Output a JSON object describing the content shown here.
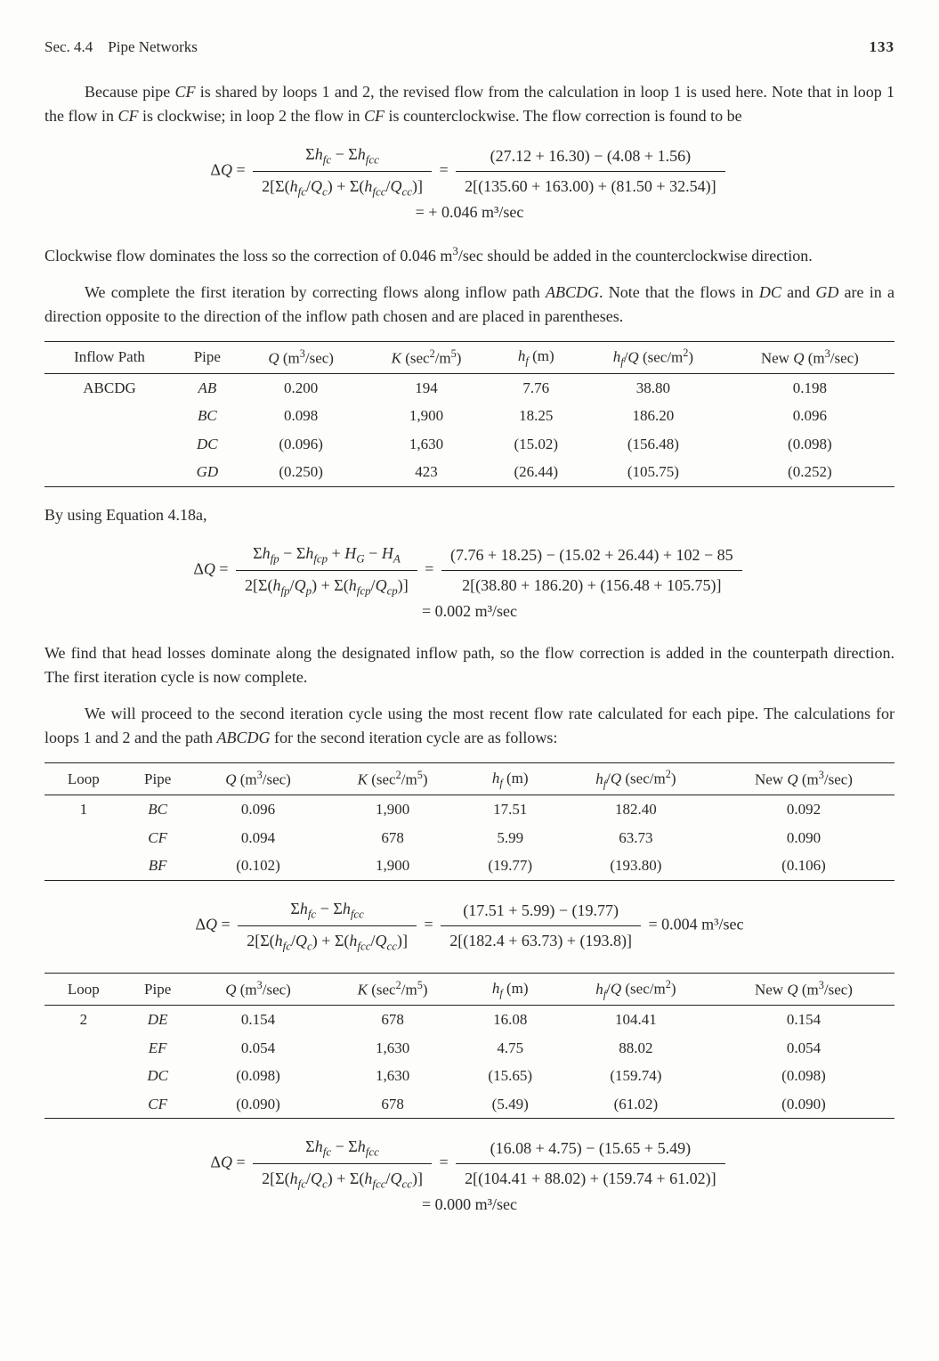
{
  "header": {
    "section": "Sec. 4.4",
    "title": "Pipe Networks",
    "page": "133"
  },
  "para1": "Because pipe CF is shared by loops 1 and 2, the revised flow from the calculation in loop 1 is used here. Note that in loop 1 the flow in CF is clockwise; in loop 2 the flow in CF is counterclockwise. The flow correction is found to be",
  "eq1": {
    "lhs": "ΔQ =",
    "num1": "Σh_{fc} − Σh_{fcc}",
    "den1": "2[Σ(h_{fc}/Q_c) + Σ(h_{fcc}/Q_{cc})]",
    "num2": "(27.12 + 16.30) − (4.08 + 1.56)",
    "den2": "2[(135.60 + 163.00) + (81.50 + 32.54)]",
    "result": "=  + 0.046 m³/sec"
  },
  "para2": "Clockwise flow dominates the loss so the correction of 0.046 m³/sec should be added in the counterclockwise direction.",
  "para3": "We complete the first iteration by correcting flows along inflow path ABCDG. Note that the flows in DC and GD are in a direction opposite to the direction of the inflow path chosen and are placed in parentheses.",
  "table1": {
    "cols": [
      "Inflow Path",
      "Pipe",
      "Q (m³/sec)",
      "K (sec²/m⁵)",
      "h_f (m)",
      "h_f/Q (sec/m²)",
      "New Q (m³/sec)"
    ],
    "rows": [
      [
        "ABCDG",
        "AB",
        "0.200",
        "194",
        "7.76",
        "38.80",
        "0.198"
      ],
      [
        "",
        "BC",
        "0.098",
        "1,900",
        "18.25",
        "186.20",
        "0.096"
      ],
      [
        "",
        "DC",
        "(0.096)",
        "1,630",
        "(15.02)",
        "(156.48)",
        "(0.098)"
      ],
      [
        "",
        "GD",
        "(0.250)",
        "423",
        "(26.44)",
        "(105.75)",
        "(0.252)"
      ]
    ]
  },
  "para4": "By using Equation 4.18a,",
  "eq2": {
    "lhs": "ΔQ =",
    "num1": "Σh_{fp} − Σh_{fcp} + H_G − H_A",
    "den1": "2[Σ(h_{fp}/Q_p) + Σ(h_{fcp}/Q_{cp})]",
    "num2": "(7.76 + 18.25) − (15.02 + 26.44) + 102 − 85",
    "den2": "2[(38.80 + 186.20) + (156.48 + 105.75)]",
    "result": "= 0.002 m³/sec"
  },
  "para5": "We find that head losses dominate along the designated inflow path, so the flow correction is added in the counterpath direction. The first iteration cycle is now complete.",
  "para6": "We will proceed to the second iteration cycle using the most recent flow rate calculated for each pipe. The calculations for loops 1 and 2 and the path ABCDG for the second iteration cycle are as follows:",
  "table2": {
    "cols": [
      "Loop",
      "Pipe",
      "Q (m³/sec)",
      "K (sec²/m⁵)",
      "h_f (m)",
      "h_f/Q (sec/m²)",
      "New Q (m³/sec)"
    ],
    "rows": [
      [
        "1",
        "BC",
        "0.096",
        "1,900",
        "17.51",
        "182.40",
        "0.092"
      ],
      [
        "",
        "CF",
        "0.094",
        "678",
        "5.99",
        "63.73",
        "0.090"
      ],
      [
        "",
        "BF",
        "(0.102)",
        "1,900",
        "(19.77)",
        "(193.80)",
        "(0.106)"
      ]
    ]
  },
  "eq3": {
    "lhs": "ΔQ =",
    "num1": "Σh_{fc} − Σh_{fcc}",
    "den1": "2[Σ(h_{fc}/Q_c) + Σ(h_{fcc}/Q_{cc})]",
    "num2": "(17.51 + 5.99) − (19.77)",
    "den2": "2[(182.4 + 63.73) + (193.8)]",
    "result": "= 0.004 m³/sec"
  },
  "table3": {
    "cols": [
      "Loop",
      "Pipe",
      "Q (m³/sec)",
      "K (sec²/m⁵)",
      "h_f (m)",
      "h_f/Q (sec/m²)",
      "New Q (m³/sec)"
    ],
    "rows": [
      [
        "2",
        "DE",
        "0.154",
        "678",
        "16.08",
        "104.41",
        "0.154"
      ],
      [
        "",
        "EF",
        "0.054",
        "1,630",
        "4.75",
        "88.02",
        "0.054"
      ],
      [
        "",
        "DC",
        "(0.098)",
        "1,630",
        "(15.65)",
        "(159.74)",
        "(0.098)"
      ],
      [
        "",
        "CF",
        "(0.090)",
        "678",
        "(5.49)",
        "(61.02)",
        "(0.090)"
      ]
    ]
  },
  "eq4": {
    "lhs": "ΔQ =",
    "num1": "Σh_{fc} − Σh_{fcc}",
    "den1": "2[Σ(h_{fc}/Q_c) + Σ(h_{fcc}/Q_{cc})]",
    "num2": "(16.08 + 4.75) − (15.65 + 5.49)",
    "den2": "2[(104.41 + 88.02) + (159.74 + 61.02)]",
    "result": "= 0.000 m³/sec"
  }
}
